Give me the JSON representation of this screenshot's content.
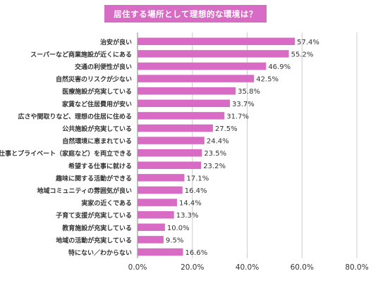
{
  "colors": {
    "bar": "#d86cc4",
    "title_bg": "#d86cc4",
    "grid": "#cccccc",
    "axis": "#888888",
    "text": "#333333"
  },
  "chart_data": {
    "type": "bar",
    "orientation": "horizontal",
    "title": "居住する場所として理想的な環境は？",
    "categories": [
      "治安が良い",
      "スーパーなど商業施設が近くにある",
      "交通の利便性が良い",
      "自然災害のリスクが少ない",
      "医療施設が充実している",
      "家賃など住居費用が安い",
      "広さや間取りなど、理想の住居に住める",
      "公共施設が充実している",
      "自然環境に恵まれている",
      "仕事とプライベート（家庭など）を両立できる",
      "希望する仕事に就ける",
      "趣味に関する活動ができる",
      "地域コミュニティの雰囲気が良い",
      "実家の近くである",
      "子育て支援が充実している",
      "教育施設が充実している",
      "地域の活動が充実している",
      "特にない／わからない"
    ],
    "values": [
      57.4,
      55.2,
      46.9,
      42.5,
      35.8,
      33.7,
      31.7,
      27.5,
      24.4,
      23.5,
      23.2,
      17.1,
      16.4,
      14.4,
      13.3,
      10.0,
      9.5,
      16.6
    ],
    "value_labels": [
      "57.4%",
      "55.2%",
      "46.9%",
      "42.5%",
      "35.8%",
      "33.7%",
      "31.7%",
      "27.5%",
      "24.4%",
      "23.5%",
      "23.2%",
      "17.1%",
      "16.4%",
      "14.4%",
      "13.3%",
      "10.0%",
      "9.5%",
      "16.6%"
    ],
    "xlim": [
      0,
      80
    ],
    "xticks": [
      "0.0%",
      "20.0%",
      "40.0%",
      "60.0%",
      "80.0%"
    ],
    "xtick_values": [
      0,
      20,
      40,
      60,
      80
    ],
    "grid": true,
    "xlabel": "",
    "ylabel": ""
  }
}
